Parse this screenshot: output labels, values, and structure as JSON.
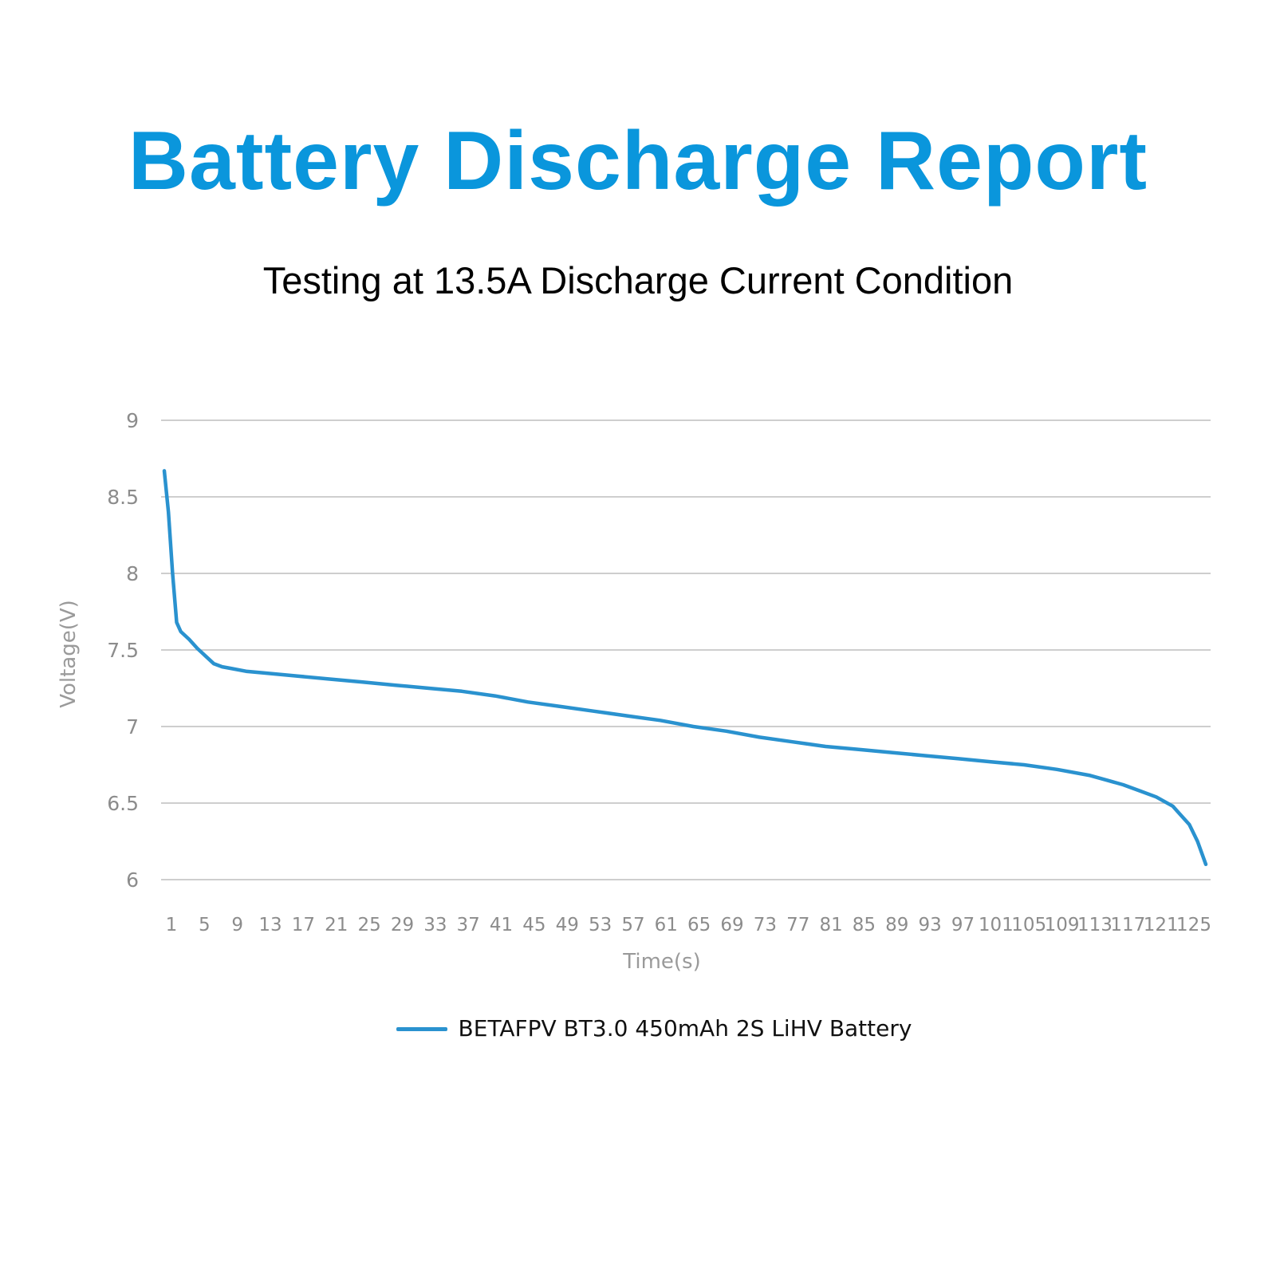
{
  "title": "Battery Discharge Report",
  "subtitle": "Testing at 13.5A Discharge Current Condition",
  "colors": {
    "title": "#0a96dc",
    "line": "#2a92cf",
    "grid": "#bdbdbd",
    "tick_text": "#8c8c8c",
    "axis_title": "#9a9a9a"
  },
  "chart_data": {
    "type": "line",
    "xlabel": "Time(s)",
    "ylabel": "Voltage(V)",
    "ylim": [
      6,
      9
    ],
    "xlim": [
      1,
      127
    ],
    "grid": "horizontal",
    "legend_position": "bottom",
    "y_ticks": [
      "6",
      "6.5",
      "7",
      "7.5",
      "8",
      "8.5",
      "9"
    ],
    "x_ticks": [
      "1",
      "5",
      "9",
      "13",
      "17",
      "21",
      "25",
      "29",
      "33",
      "37",
      "41",
      "45",
      "49",
      "53",
      "57",
      "61",
      "65",
      "69",
      "73",
      "77",
      "81",
      "85",
      "89",
      "93",
      "97",
      "101",
      "105",
      "109",
      "113",
      "117",
      "121",
      "125"
    ],
    "series": [
      {
        "name": "BETAFPV BT3.0 450mAh 2S LiHV Battery",
        "x": [
          1,
          1.5,
          2,
          2.5,
          3,
          4,
          5,
          6,
          7,
          8,
          9,
          11,
          13,
          17,
          21,
          25,
          29,
          33,
          37,
          41,
          45,
          49,
          53,
          57,
          61,
          65,
          69,
          73,
          77,
          81,
          85,
          89,
          93,
          97,
          101,
          105,
          109,
          113,
          115,
          117,
          119,
          121,
          123,
          124,
          125,
          126,
          127
        ],
        "y": [
          8.67,
          8.4,
          8.0,
          7.68,
          7.62,
          7.57,
          7.51,
          7.46,
          7.41,
          7.39,
          7.38,
          7.36,
          7.35,
          7.33,
          7.31,
          7.29,
          7.27,
          7.25,
          7.23,
          7.2,
          7.16,
          7.13,
          7.1,
          7.07,
          7.04,
          7.0,
          6.97,
          6.93,
          6.9,
          6.87,
          6.85,
          6.83,
          6.81,
          6.79,
          6.77,
          6.75,
          6.72,
          6.68,
          6.65,
          6.62,
          6.58,
          6.54,
          6.48,
          6.42,
          6.36,
          6.25,
          6.1
        ]
      }
    ]
  }
}
